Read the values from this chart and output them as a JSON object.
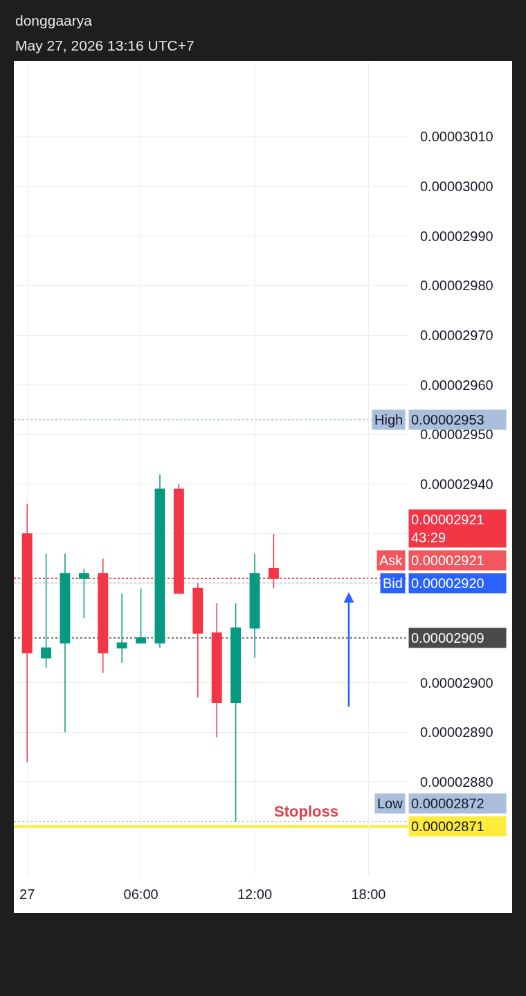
{
  "chart_data": {
    "type": "candlestick",
    "title": "donggaarya",
    "subtitle": "May 27, 2026 13:16 UTC+7",
    "x": [
      "2026-05-27T00:00",
      "2026-05-27T01:00",
      "2026-05-27T02:00",
      "2026-05-27T03:00",
      "2026-05-27T04:00",
      "2026-05-27T05:00",
      "2026-05-27T06:00",
      "2026-05-27T07:00",
      "2026-05-27T08:00",
      "2026-05-27T09:00",
      "2026-05-27T10:00",
      "2026-05-27T11:00",
      "2026-05-27T12:00",
      "2026-05-27T13:00"
    ],
    "ohlc": [
      [
        2.93e-05,
        2.936e-05,
        2.884e-05,
        2.906e-05
      ],
      [
        2.905e-05,
        2.926e-05,
        2.903e-05,
        2.907e-05
      ],
      [
        2.908e-05,
        2.926e-05,
        2.89e-05,
        2.922e-05
      ],
      [
        2.921e-05,
        2.923e-05,
        2.913e-05,
        2.922e-05
      ],
      [
        2.922e-05,
        2.925e-05,
        2.902e-05,
        2.906e-05
      ],
      [
        2.907e-05,
        2.918e-05,
        2.904e-05,
        2.908e-05
      ],
      [
        2.908e-05,
        2.919e-05,
        2.908e-05,
        2.909e-05
      ],
      [
        2.908e-05,
        2.942e-05,
        2.907e-05,
        2.939e-05
      ],
      [
        2.939e-05,
        2.94e-05,
        2.918e-05,
        2.918e-05
      ],
      [
        2.919e-05,
        2.92e-05,
        2.897e-05,
        2.91e-05
      ],
      [
        2.91e-05,
        2.916e-05,
        2.889e-05,
        2.896e-05
      ],
      [
        2.896e-05,
        2.916e-05,
        2.872e-05,
        2.911e-05
      ],
      [
        2.911e-05,
        2.926e-05,
        2.905e-05,
        2.922e-05
      ],
      [
        2.923e-05,
        2.93e-05,
        2.919e-05,
        2.921e-05
      ]
    ],
    "colors": [
      "#f23645",
      "#089981",
      "#089981",
      "#089981",
      "#f23645",
      "#089981",
      "#089981",
      "#089981",
      "#f23645",
      "#f23645",
      "#f23645",
      "#089981",
      "#089981",
      "#f23645"
    ],
    "xlim": [
      "2026-05-26T23:18",
      "2026-05-27T20:06"
    ],
    "xticks": [
      {
        "value": "2026-05-27T00:00",
        "label": "27"
      },
      {
        "value": "2026-05-27T06:00",
        "label": "06:00"
      },
      {
        "value": "2026-05-27T12:00",
        "label": "12:00"
      },
      {
        "value": "2026-05-27T18:00",
        "label": "18:00"
      }
    ],
    "ylim": [
      2.861e-05,
      3.025e-05
    ],
    "yticks": [
      {
        "value": 2.88e-05,
        "label": "0.00002880"
      },
      {
        "value": 2.89e-05,
        "label": "0.00002890"
      },
      {
        "value": 2.9e-05,
        "label": "0.00002900"
      },
      {
        "value": 2.91e-05,
        "label": null
      },
      {
        "value": 2.92e-05,
        "label": null
      },
      {
        "value": 2.93e-05,
        "label": null
      },
      {
        "value": 2.94e-05,
        "label": "0.00002940"
      },
      {
        "value": 2.95e-05,
        "label": "0.00002950"
      },
      {
        "value": 2.96e-05,
        "label": "0.00002960"
      },
      {
        "value": 2.97e-05,
        "label": "0.00002970"
      },
      {
        "value": 2.98e-05,
        "label": "0.00002980"
      },
      {
        "value": 2.99e-05,
        "label": "0.00002990"
      },
      {
        "value": 3e-05,
        "label": "0.00003000"
      },
      {
        "value": 3.01e-05,
        "label": "0.00003010"
      }
    ],
    "grid": true,
    "ref_lines": [
      {
        "axis": "y",
        "value": 2.953e-05,
        "label": "High",
        "color": "#a9bfdc",
        "line_style": "dotted"
      },
      {
        "axis": "y",
        "value": 2.921e-05,
        "label": "Ask",
        "color": "#f0575f",
        "line_style": "dotted"
      },
      {
        "axis": "y",
        "value": 2.921e-05,
        "label": "43:29",
        "color": "#f23645",
        "line_style": "dotted"
      },
      {
        "axis": "y",
        "value": 2.92e-05,
        "label": "Bid",
        "color": "#2962ff",
        "line_style": "dotted"
      },
      {
        "axis": "y",
        "value": 2.909e-05,
        "color": "#4a4a4a",
        "line_style": "dotted"
      },
      {
        "axis": "y",
        "value": 2.872e-05,
        "label": "Low",
        "color": "#a9bfdc",
        "line_style": "dotted"
      },
      {
        "axis": "y",
        "value": 2.871e-05,
        "color": "#ffeb3b",
        "line_style": "solid"
      }
    ],
    "annotations": [
      "0.00002953",
      "0.00002921",
      "0.00002921",
      "0.00002920",
      "0.00002909",
      "0.00002872",
      "0.00002871",
      {
        "text": "Stoploss",
        "x": "2026-05-27T14:42",
        "y": 2.872e-05
      }
    ]
  }
}
